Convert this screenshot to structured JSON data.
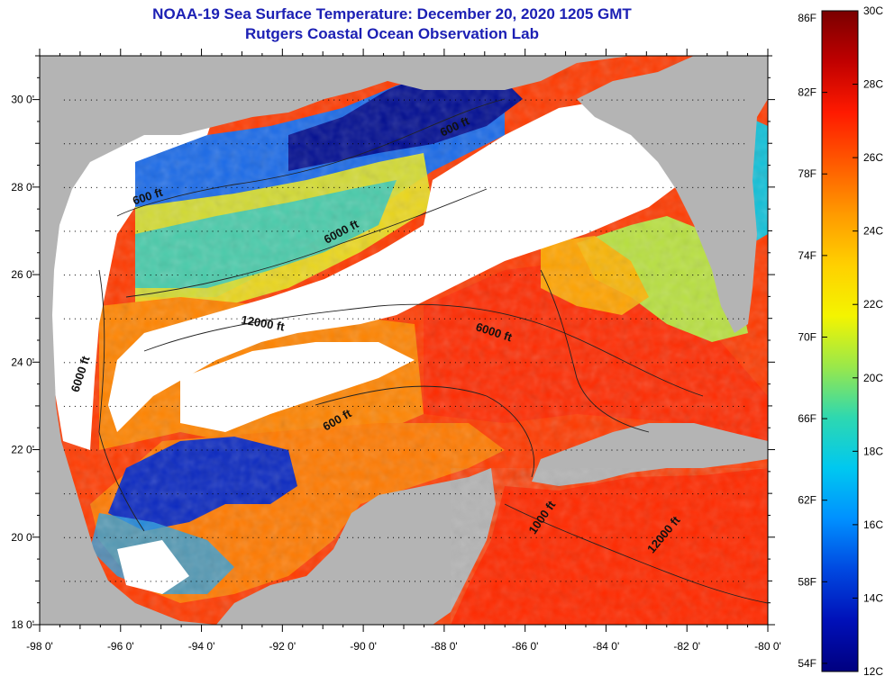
{
  "title": {
    "line1": "NOAA-19 Sea Surface Temperature:  December 20, 2020 1205 GMT",
    "line2": "Rutgers Coastal Ocean Observation Lab"
  },
  "axes": {
    "x_ticks": [
      "-98 0'",
      "-96 0'",
      "-94 0'",
      "-92 0'",
      "-90 0'",
      "-88 0'",
      "-86 0'",
      "-84 0'",
      "-82 0'",
      "-80 0'"
    ],
    "x_values": [
      -98,
      -96,
      -94,
      -92,
      -90,
      -88,
      -86,
      -84,
      -82,
      -80
    ],
    "y_ticks": [
      "30 0'",
      "28 0'",
      "26 0'",
      "24 0'",
      "22 0'",
      "20 0'",
      "18 0'"
    ],
    "y_values": [
      30,
      28,
      26,
      24,
      22,
      20,
      18
    ],
    "lon_range": [
      -98,
      -80
    ],
    "lat_range": [
      18,
      31
    ]
  },
  "contour_labels": [
    {
      "text": "600 ft",
      "lon": -95.3,
      "lat": 27.7,
      "rotate": -18
    },
    {
      "text": "6000 ft",
      "lon": -90.5,
      "lat": 26.9,
      "rotate": -28
    },
    {
      "text": "12000 ft",
      "lon": -92.5,
      "lat": 24.8,
      "rotate": 10
    },
    {
      "text": "6000 ft",
      "lon": -96.9,
      "lat": 23.7,
      "rotate": -72
    },
    {
      "text": "6000 ft",
      "lon": -86.8,
      "lat": 24.6,
      "rotate": 18
    },
    {
      "text": "600 ft",
      "lon": -90.6,
      "lat": 22.6,
      "rotate": -30
    },
    {
      "text": "1000 ft",
      "lon": -85.5,
      "lat": 20.4,
      "rotate": -55
    },
    {
      "text": "12000 ft",
      "lon": -82.5,
      "lat": 20.0,
      "rotate": -50
    },
    {
      "text": "600 ft",
      "lon": -87.7,
      "lat": 29.3,
      "rotate": -25
    }
  ],
  "colorbar": {
    "f_labels": [
      "86F",
      "82F",
      "78F",
      "74F",
      "70F",
      "66F",
      "62F",
      "58F",
      "54F"
    ],
    "f_values": [
      86,
      82,
      78,
      74,
      70,
      66,
      62,
      58,
      54
    ],
    "c_labels": [
      "30C",
      "28C",
      "26C",
      "24C",
      "22C",
      "20C",
      "18C",
      "16C",
      "14C",
      "12C"
    ],
    "c_values": [
      30,
      28,
      26,
      24,
      22,
      20,
      18,
      16,
      14,
      12
    ],
    "range_c": [
      12,
      30
    ],
    "colors_top_to_bottom": [
      "#7a0000",
      "#c00000",
      "#ff1a00",
      "#ff5a00",
      "#ff9a00",
      "#ffd000",
      "#f4f400",
      "#9ae84a",
      "#2ed8b0",
      "#00c8f0",
      "#0090ff",
      "#0048e0",
      "#0010b8",
      "#000080"
    ]
  },
  "colors": {
    "land": "#b4b4b4",
    "cloud": "#ffffff",
    "coastline": "#000000",
    "title": "#1c20b4"
  }
}
